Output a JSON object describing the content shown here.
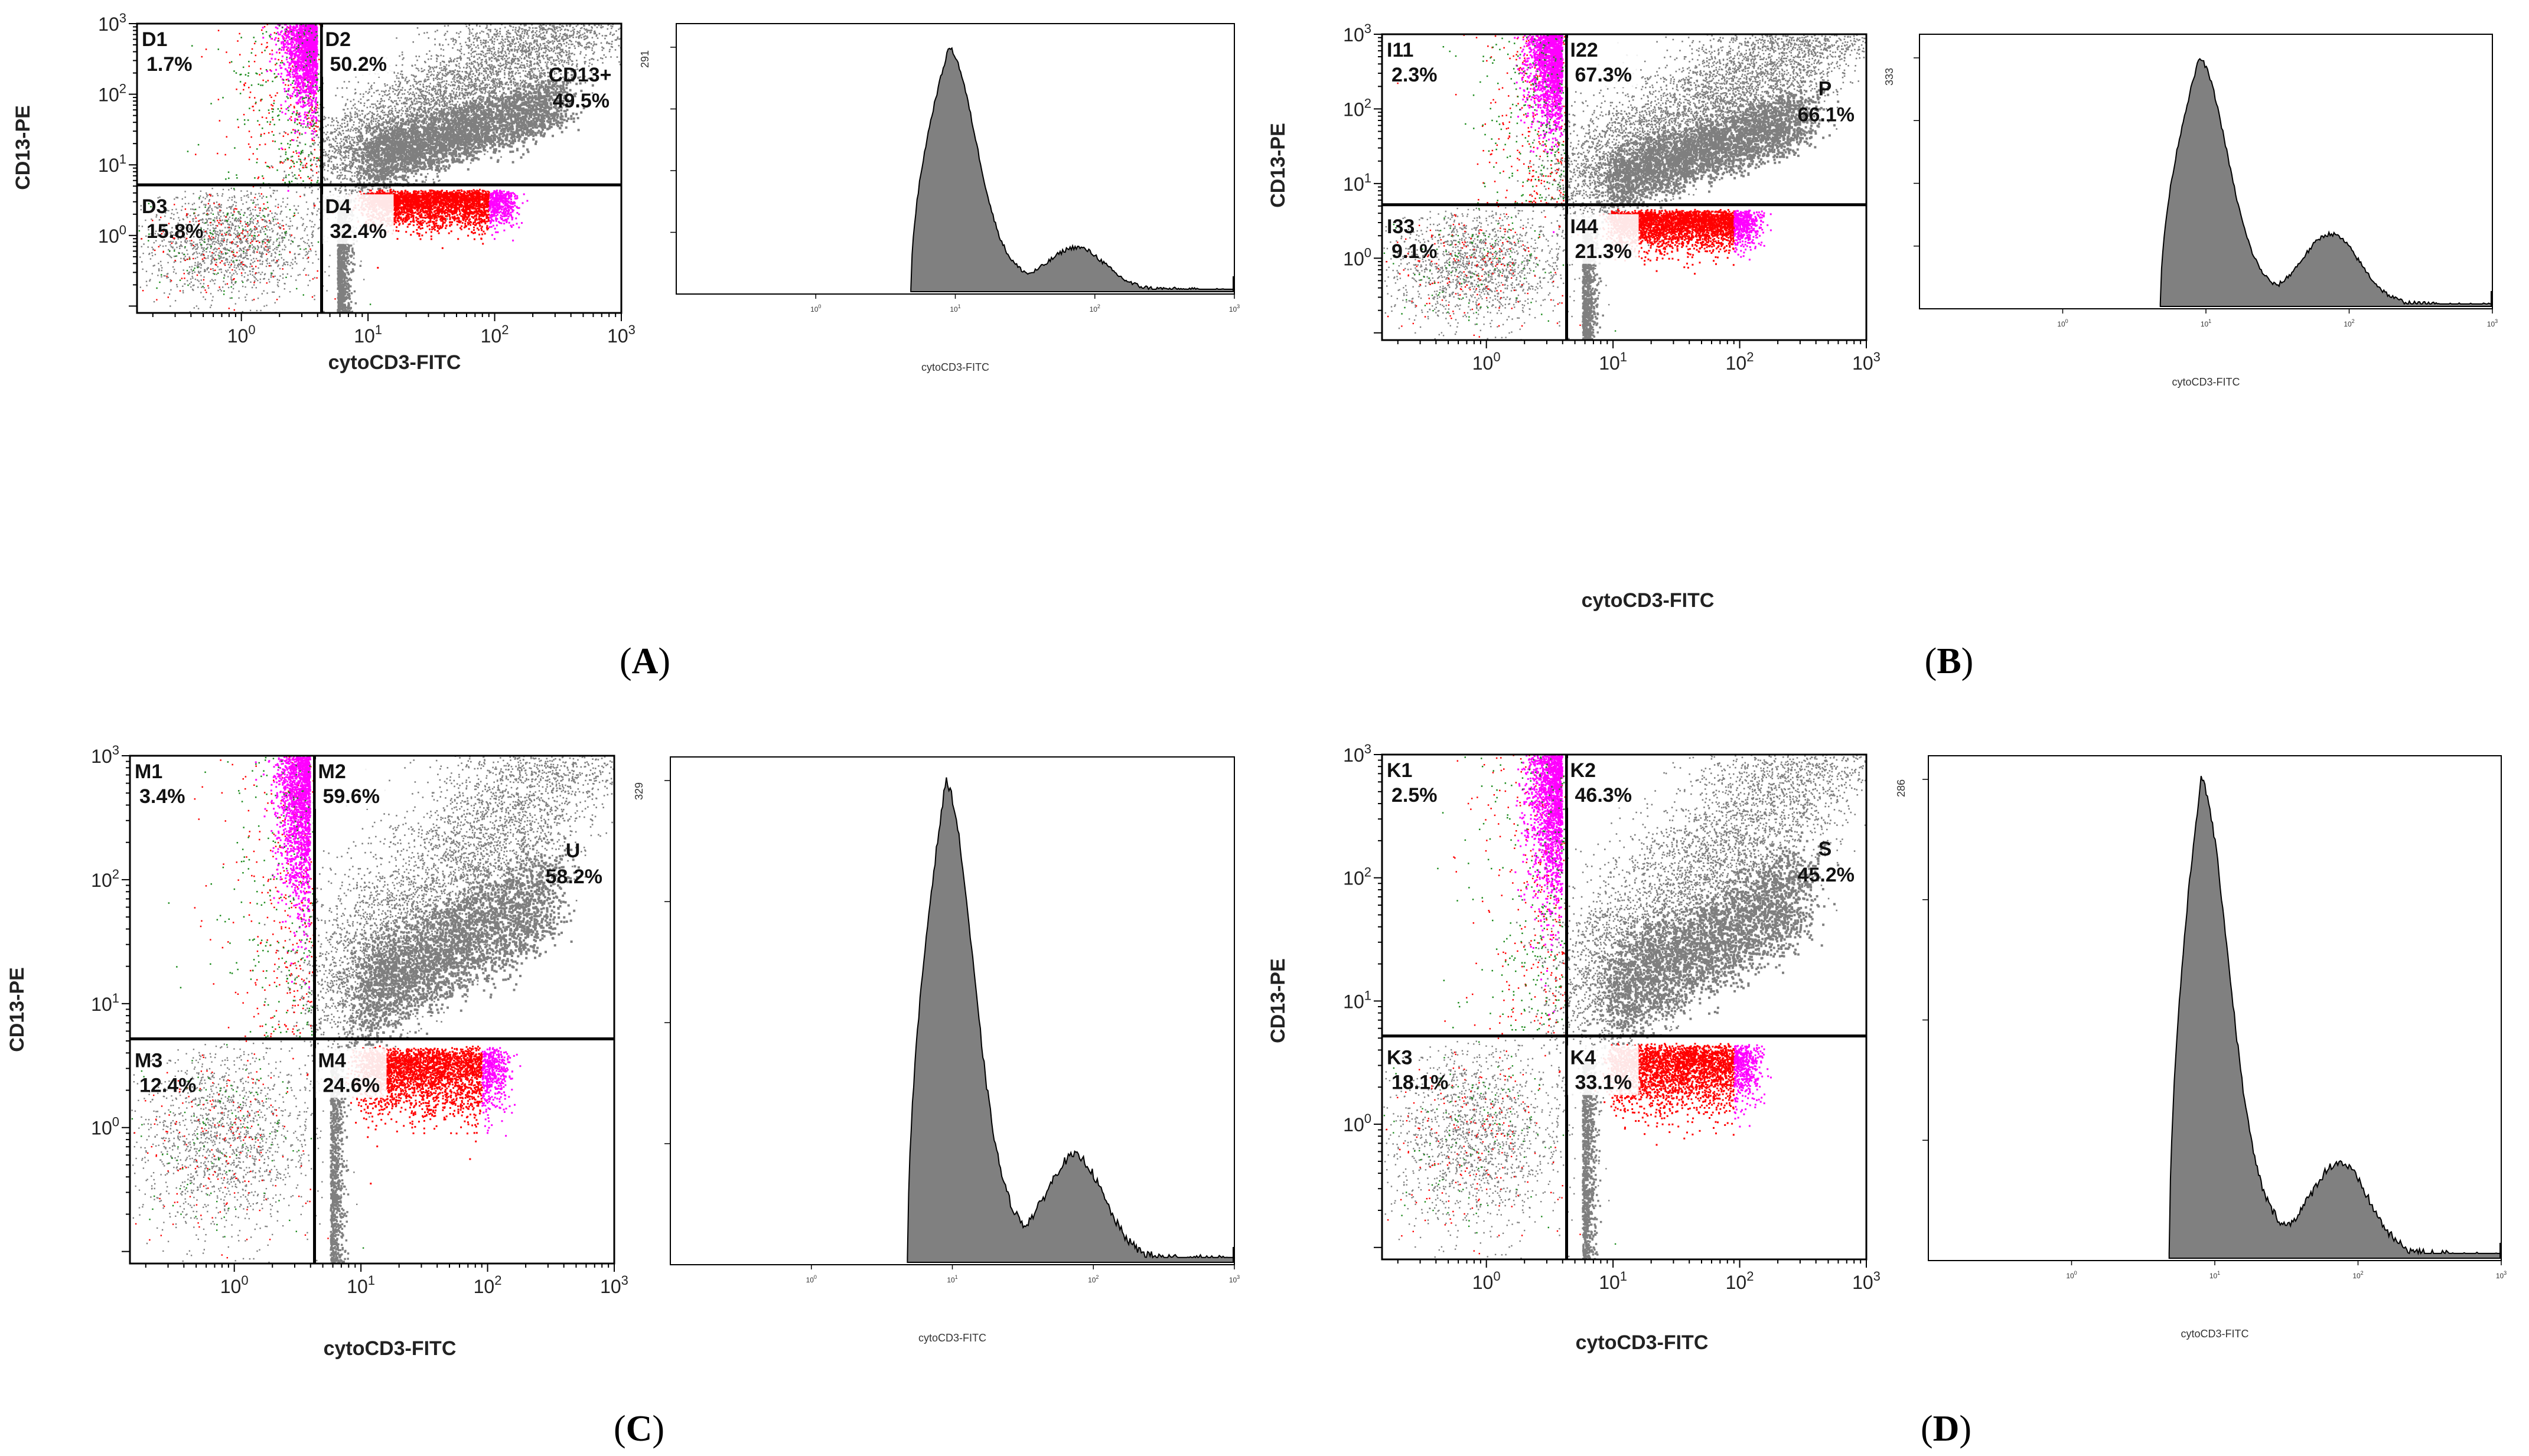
{
  "colors": {
    "gray": "#7f7f7f",
    "red": "#ff0000",
    "magenta": "#ff00ff",
    "green": "#1b8a1b",
    "histogram_fill": "#808080",
    "axis": "#000000"
  },
  "chart_data": [
    {
      "panel": "A",
      "scatter": {
        "type": "scatter",
        "xlabel": "cytoCD3-FITC",
        "ylabel": "CD13-PE",
        "xscale": "log",
        "yscale": "log",
        "xlim": [
          0.15,
          1000
        ],
        "ylim": [
          0.08,
          1000
        ],
        "x_ticks": [
          {
            "base": "10",
            "exp": "0"
          },
          {
            "base": "10",
            "exp": "1"
          },
          {
            "base": "10",
            "exp": "2"
          },
          {
            "base": "10",
            "exp": "3"
          }
        ],
        "y_ticks": [
          {
            "base": "10",
            "exp": "0"
          },
          {
            "base": "10",
            "exp": "1"
          },
          {
            "base": "10",
            "exp": "2"
          },
          {
            "base": "10",
            "exp": "3"
          }
        ],
        "gate_x": 4.3,
        "gate_y": 5.2,
        "quadrants": [
          {
            "name": "D1",
            "percent": "1.7%"
          },
          {
            "name": "D2",
            "percent": "50.2%"
          },
          {
            "name": "D3",
            "percent": "15.8%"
          },
          {
            "name": "D4",
            "percent": "32.4%"
          }
        ],
        "region": {
          "name": "CD13+",
          "percent": "49.5%"
        }
      },
      "histogram": {
        "type": "area",
        "xlabel": "cytoCD3-FITC",
        "ymax_label": "291",
        "xscale": "log",
        "xlim": [
          0.1,
          1000
        ],
        "peak_x": 9,
        "shoulder_x": 75,
        "shoulder_rel": 0.16,
        "start_x": 4.8
      }
    },
    {
      "panel": "B",
      "scatter": {
        "type": "scatter",
        "xlabel": "cytoCD3-FITC",
        "ylabel": "CD13-PE",
        "xscale": "log",
        "yscale": "log",
        "xlim": [
          0.15,
          1000
        ],
        "ylim": [
          0.08,
          1000
        ],
        "x_ticks": [
          {
            "base": "10",
            "exp": "0"
          },
          {
            "base": "10",
            "exp": "1"
          },
          {
            "base": "10",
            "exp": "2"
          },
          {
            "base": "10",
            "exp": "3"
          }
        ],
        "y_ticks": [
          {
            "base": "10",
            "exp": "0"
          },
          {
            "base": "10",
            "exp": "1"
          },
          {
            "base": "10",
            "exp": "2"
          },
          {
            "base": "10",
            "exp": "3"
          }
        ],
        "gate_x": 4.3,
        "gate_y": 5.2,
        "quadrants": [
          {
            "name": "I11",
            "percent": "2.3%"
          },
          {
            "name": "I22",
            "percent": "67.3%"
          },
          {
            "name": "I33",
            "percent": "9.1%"
          },
          {
            "name": "I44",
            "percent": "21.3%"
          }
        ],
        "region": {
          "name": "P",
          "percent": "66.1%"
        }
      },
      "histogram": {
        "type": "area",
        "xlabel": "cytoCD3-FITC",
        "ymax_label": "333",
        "xscale": "log",
        "xlim": [
          0.1,
          1000
        ],
        "peak_x": 9,
        "shoulder_x": 75,
        "shoulder_rel": 0.27,
        "start_x": 4.8
      }
    },
    {
      "panel": "C",
      "scatter": {
        "type": "scatter",
        "xlabel": "cytoCD3-FITC",
        "ylabel": "CD13-PE",
        "xscale": "log",
        "yscale": "log",
        "xlim": [
          0.15,
          1000
        ],
        "ylim": [
          0.08,
          1000
        ],
        "x_ticks": [
          {
            "base": "10",
            "exp": "0"
          },
          {
            "base": "10",
            "exp": "1"
          },
          {
            "base": "10",
            "exp": "2"
          },
          {
            "base": "10",
            "exp": "3"
          }
        ],
        "y_ticks": [
          {
            "base": "10",
            "exp": "0"
          },
          {
            "base": "10",
            "exp": "1"
          },
          {
            "base": "10",
            "exp": "2"
          },
          {
            "base": "10",
            "exp": "3"
          }
        ],
        "gate_x": 4.3,
        "gate_y": 5.2,
        "quadrants": [
          {
            "name": "M1",
            "percent": "3.4%"
          },
          {
            "name": "M2",
            "percent": "59.6%"
          },
          {
            "name": "M3",
            "percent": "12.4%"
          },
          {
            "name": "M4",
            "percent": "24.6%"
          }
        ],
        "region": {
          "name": "U",
          "percent": "58.2%"
        }
      },
      "histogram": {
        "type": "area",
        "xlabel": "cytoCD3-FITC",
        "ymax_label": "329",
        "xscale": "log",
        "xlim": [
          0.1,
          1000
        ],
        "peak_x": 9,
        "shoulder_x": 75,
        "shoulder_rel": 0.2,
        "start_x": 4.8
      }
    },
    {
      "panel": "D",
      "scatter": {
        "type": "scatter",
        "xlabel": "cytoCD3-FITC",
        "ylabel": "CD13-PE",
        "xscale": "log",
        "yscale": "log",
        "xlim": [
          0.15,
          1000
        ],
        "ylim": [
          0.08,
          1000
        ],
        "x_ticks": [
          {
            "base": "10",
            "exp": "0"
          },
          {
            "base": "10",
            "exp": "1"
          },
          {
            "base": "10",
            "exp": "2"
          },
          {
            "base": "10",
            "exp": "3"
          }
        ],
        "y_ticks": [
          {
            "base": "10",
            "exp": "0"
          },
          {
            "base": "10",
            "exp": "1"
          },
          {
            "base": "10",
            "exp": "2"
          },
          {
            "base": "10",
            "exp": "3"
          }
        ],
        "gate_x": 4.3,
        "gate_y": 5.2,
        "quadrants": [
          {
            "name": "K1",
            "percent": "2.5%"
          },
          {
            "name": "K2",
            "percent": "46.3%"
          },
          {
            "name": "K3",
            "percent": "18.1%"
          },
          {
            "name": "K4",
            "percent": "33.1%"
          }
        ],
        "region": {
          "name": "S",
          "percent": "45.2%"
        }
      },
      "histogram": {
        "type": "area",
        "xlabel": "cytoCD3-FITC",
        "ymax_label": "286",
        "xscale": "log",
        "xlim": [
          0.1,
          1000
        ],
        "peak_x": 8,
        "shoulder_x": 75,
        "shoulder_rel": 0.18,
        "start_x": 4.8
      }
    }
  ]
}
